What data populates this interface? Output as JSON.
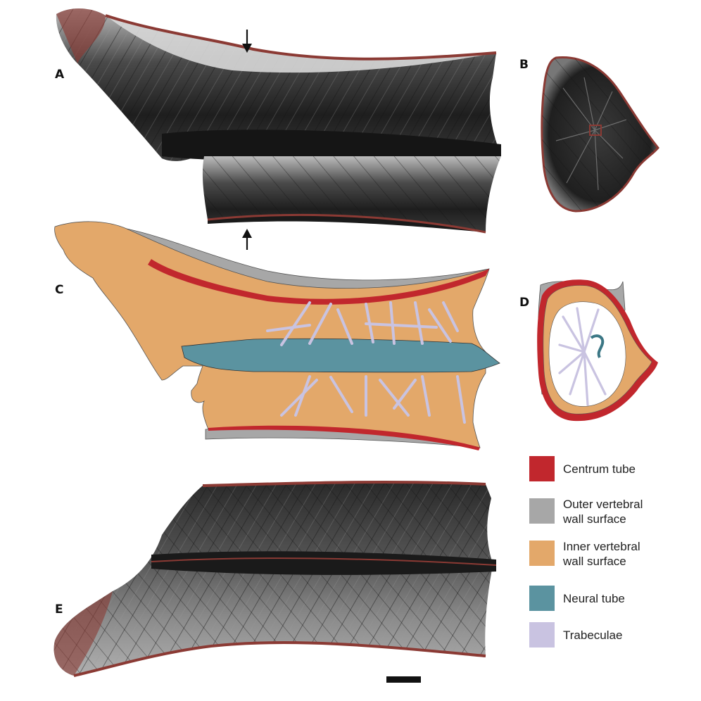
{
  "panels": [
    {
      "id": "A",
      "label": "A"
    },
    {
      "id": "B",
      "label": "B"
    },
    {
      "id": "C",
      "label": "C"
    },
    {
      "id": "D",
      "label": "D"
    },
    {
      "id": "E",
      "label": "E"
    }
  ],
  "legend": {
    "items": [
      {
        "line1": "Centrum tube",
        "line2": "",
        "color": "#c1272d"
      },
      {
        "line1": "Outer vertebral",
        "line2": "wall surface",
        "color": "#a7a7a7"
      },
      {
        "line1": "Inner vertebral",
        "line2": "wall surface",
        "color": "#e3a86a"
      },
      {
        "line1": "Neural tube",
        "line2": "",
        "color": "#5b93a0"
      },
      {
        "line1": "Trabeculae",
        "line2": "",
        "color": "#c9c3e1"
      }
    ]
  },
  "colors": {
    "scan_dark": "#2a2a2a",
    "scan_mid": "#6e6e6e",
    "scan_light": "#bdbdbd",
    "rim": "#8b3a34"
  }
}
